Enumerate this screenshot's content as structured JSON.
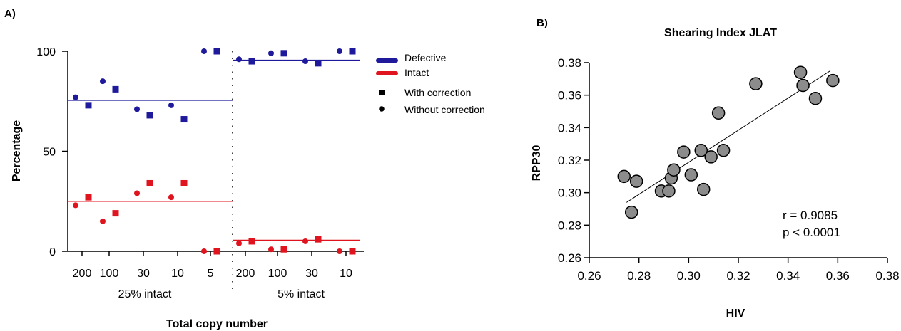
{
  "panel_a": {
    "label": "A)",
    "ylabel": "Percentage",
    "xlabel": "Total copy number",
    "y_ticks": [
      "0",
      "50",
      "100"
    ],
    "groups": [
      {
        "label": "25% intact",
        "ticks": [
          "200",
          "100",
          "30",
          "10",
          "5"
        ]
      },
      {
        "label": "5% intact",
        "ticks": [
          "200",
          "100",
          "30",
          "10"
        ]
      }
    ],
    "legend": {
      "defective": "Defective",
      "intact": "Intact",
      "with_correction": "With correction",
      "without_correction": "Without correction"
    }
  },
  "panel_b": {
    "label": "B)",
    "title": "Shearing Index JLAT",
    "xlabel": "HIV",
    "ylabel": "RPP30",
    "x_ticks": [
      "0.26",
      "0.28",
      "0.30",
      "0.32",
      "0.34",
      "0.36",
      "0.38"
    ],
    "y_ticks": [
      "0.26",
      "0.28",
      "0.30",
      "0.32",
      "0.34",
      "0.36",
      "0.38"
    ],
    "stat_r": "r = 0.9085",
    "stat_p": "p < 0.0001"
  },
  "colors": {
    "defective": "#1f1a9c",
    "intact": "#e0141e",
    "point_fill": "#8c8c8c"
  },
  "chart_data": [
    {
      "type": "scatter",
      "panel": "A",
      "ylabel": "Percentage",
      "xlabel": "Total copy number",
      "ylim": [
        0,
        100
      ],
      "groups": [
        "25% intact",
        "5% intact"
      ],
      "categories": [
        {
          "group": "25% intact",
          "total_copy_number": "200"
        },
        {
          "group": "25% intact",
          "total_copy_number": "100"
        },
        {
          "group": "25% intact",
          "total_copy_number": "30"
        },
        {
          "group": "25% intact",
          "total_copy_number": "10"
        },
        {
          "group": "25% intact",
          "total_copy_number": "5"
        },
        {
          "group": "5% intact",
          "total_copy_number": "200"
        },
        {
          "group": "5% intact",
          "total_copy_number": "100"
        },
        {
          "group": "5% intact",
          "total_copy_number": "30"
        },
        {
          "group": "5% intact",
          "total_copy_number": "10"
        }
      ],
      "series": [
        {
          "name": "Defective",
          "marker": "Without correction",
          "values": [
            77,
            85,
            71,
            73,
            100,
            96,
            99,
            95,
            100
          ]
        },
        {
          "name": "Defective",
          "marker": "With correction",
          "values": [
            73,
            81,
            68,
            66,
            100,
            95,
            99,
            94,
            100
          ]
        },
        {
          "name": "Intact",
          "marker": "Without correction",
          "values": [
            23,
            15,
            29,
            27,
            0,
            4,
            1,
            5,
            0
          ]
        },
        {
          "name": "Intact",
          "marker": "With correction",
          "values": [
            27,
            19,
            34,
            34,
            0,
            5,
            1,
            6,
            0
          ]
        }
      ],
      "mean_lines": [
        {
          "series": "Defective",
          "group": "25% intact",
          "value": 75.5
        },
        {
          "series": "Intact",
          "group": "25% intact",
          "value": 25
        },
        {
          "series": "Defective",
          "group": "5% intact",
          "value": 95.5
        },
        {
          "series": "Intact",
          "group": "5% intact",
          "value": 5.5
        }
      ],
      "legend": [
        "Defective",
        "Intact",
        "With correction",
        "Without correction"
      ],
      "legend_position": "right"
    },
    {
      "type": "scatter",
      "panel": "B",
      "title": "Shearing Index JLAT",
      "xlabel": "HIV",
      "ylabel": "RPP30",
      "xlim": [
        0.26,
        0.38
      ],
      "ylim": [
        0.26,
        0.38
      ],
      "points": [
        {
          "x": 0.274,
          "y": 0.31
        },
        {
          "x": 0.277,
          "y": 0.288
        },
        {
          "x": 0.279,
          "y": 0.307
        },
        {
          "x": 0.289,
          "y": 0.301
        },
        {
          "x": 0.292,
          "y": 0.301
        },
        {
          "x": 0.293,
          "y": 0.309
        },
        {
          "x": 0.294,
          "y": 0.314
        },
        {
          "x": 0.298,
          "y": 0.325
        },
        {
          "x": 0.301,
          "y": 0.311
        },
        {
          "x": 0.305,
          "y": 0.326
        },
        {
          "x": 0.306,
          "y": 0.302
        },
        {
          "x": 0.309,
          "y": 0.322
        },
        {
          "x": 0.312,
          "y": 0.349
        },
        {
          "x": 0.314,
          "y": 0.326
        },
        {
          "x": 0.327,
          "y": 0.367
        },
        {
          "x": 0.345,
          "y": 0.374
        },
        {
          "x": 0.346,
          "y": 0.366
        },
        {
          "x": 0.351,
          "y": 0.358
        },
        {
          "x": 0.358,
          "y": 0.369
        }
      ],
      "fit_line": {
        "x": [
          0.275,
          0.357
        ],
        "y": [
          0.294,
          0.375
        ]
      },
      "annotations": [
        "r = 0.9085",
        "p < 0.0001"
      ]
    }
  ]
}
